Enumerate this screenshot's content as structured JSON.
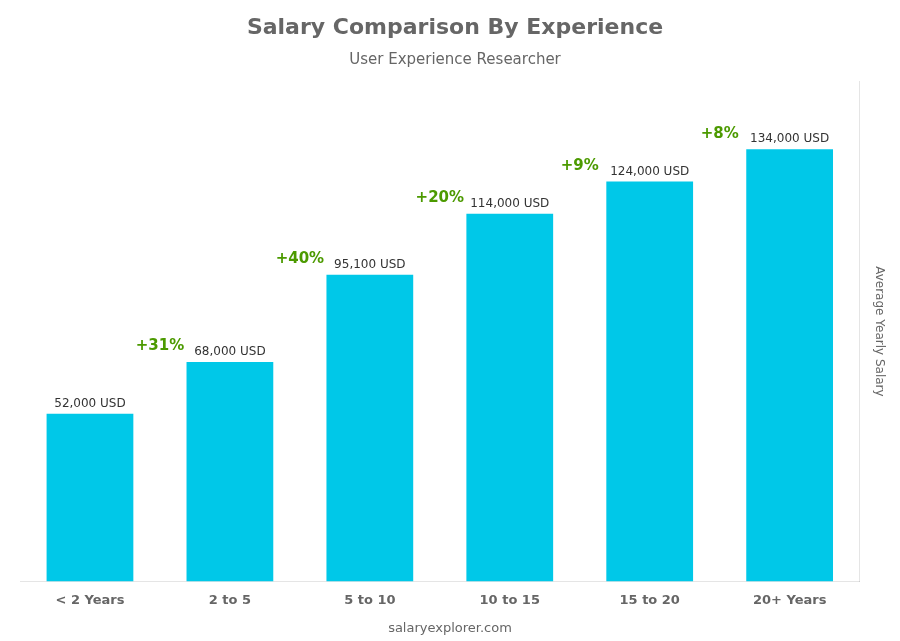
{
  "chart_data": {
    "type": "bar",
    "title": "Salary Comparison By Experience",
    "subtitle": "User Experience Researcher",
    "categories": [
      "< 2 Years",
      "2 to 5",
      "5 to 10",
      "10 to 15",
      "15 to 20",
      "20+ Years"
    ],
    "values": [
      52000,
      68000,
      95100,
      114000,
      124000,
      134000
    ],
    "value_labels": [
      "52,000 USD",
      "68,000 USD",
      "95,100 USD",
      "114,000 USD",
      "124,000 USD",
      "134,000 USD"
    ],
    "data_labels": true,
    "annotations": [
      "+31%",
      "+40%",
      "+20%",
      "+9%",
      "+8%"
    ],
    "y_label": "Average Yearly Salary",
    "footer": "salaryexplorer.com",
    "color": "#00c8e8",
    "ylim": [
      0,
      155000
    ],
    "tick_labels": "x",
    "grid": false
  }
}
